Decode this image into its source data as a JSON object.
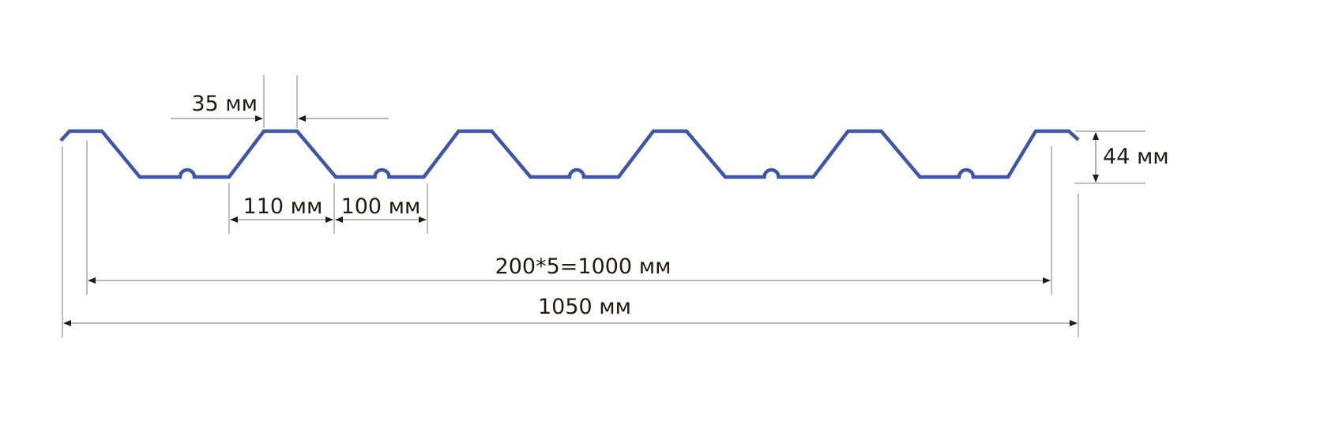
{
  "colors": {
    "profile": "#3f56a6",
    "dimension_lines": "#9a9a9a",
    "text": "#231a12"
  },
  "labels": {
    "crest_width": "35 мм",
    "slope_width": "110 мм",
    "valley_width": "100 мм",
    "height": "44 мм",
    "pitch_total": "200*5=1000 мм",
    "overall_width": "1050 мм"
  }
}
